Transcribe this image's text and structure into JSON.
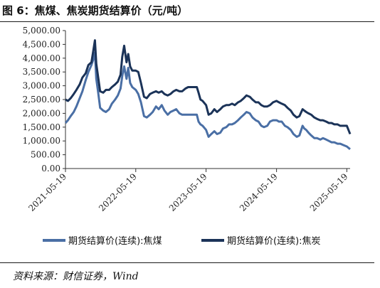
{
  "figure": {
    "title": "图 6：焦煤、焦炭期货结算价（元/吨）",
    "source": "资料来源：财信证券，Wind"
  },
  "chart_data": {
    "type": "line",
    "title": "",
    "xlabel": "",
    "ylabel": "",
    "ylim": [
      0,
      5000
    ],
    "y_ticks": [
      "0.00",
      "500.00",
      "1,000.00",
      "1,500.00",
      "2,000.00",
      "2,500.00",
      "3,000.00",
      "3,500.00",
      "4,000.00",
      "4,500.00",
      "5,000.00"
    ],
    "x_ticks": [
      "2021-05-19",
      "2022-05-19",
      "2023-05-19",
      "2024-05-19",
      "2025-05-19"
    ],
    "x_range": [
      "2021-05-19",
      "2025-06-05"
    ],
    "legend_position": "bottom",
    "grid": false,
    "series": [
      {
        "name": "期货结算价(连续):焦煤",
        "color": "#4a6fa5",
        "points": [
          [
            "2021-05-19",
            1650
          ],
          [
            "2021-06-01",
            1750
          ],
          [
            "2021-06-15",
            1900
          ],
          [
            "2021-07-01",
            2050
          ],
          [
            "2021-07-15",
            2250
          ],
          [
            "2021-08-01",
            2550
          ],
          [
            "2021-08-15",
            2800
          ],
          [
            "2021-09-01",
            3200
          ],
          [
            "2021-09-15",
            3500
          ],
          [
            "2021-10-01",
            3750
          ],
          [
            "2021-10-10",
            3950
          ],
          [
            "2021-10-19",
            4200
          ],
          [
            "2021-10-26",
            3250
          ],
          [
            "2021-11-05",
            2750
          ],
          [
            "2021-11-15",
            2200
          ],
          [
            "2021-12-01",
            2100
          ],
          [
            "2021-12-15",
            2050
          ],
          [
            "2022-01-01",
            2150
          ],
          [
            "2022-01-15",
            2350
          ],
          [
            "2022-02-01",
            2500
          ],
          [
            "2022-02-15",
            2650
          ],
          [
            "2022-03-01",
            2900
          ],
          [
            "2022-03-10",
            3350
          ],
          [
            "2022-03-20",
            3700
          ],
          [
            "2022-04-01",
            3250
          ],
          [
            "2022-04-10",
            3650
          ],
          [
            "2022-04-20",
            3100
          ],
          [
            "2022-05-01",
            2950
          ],
          [
            "2022-05-19",
            2850
          ],
          [
            "2022-06-01",
            2700
          ],
          [
            "2022-06-15",
            2400
          ],
          [
            "2022-07-01",
            1900
          ],
          [
            "2022-07-15",
            1850
          ],
          [
            "2022-08-01",
            1950
          ],
          [
            "2022-08-15",
            2050
          ],
          [
            "2022-09-01",
            2250
          ],
          [
            "2022-09-15",
            2150
          ],
          [
            "2022-10-01",
            2300
          ],
          [
            "2022-10-15",
            2100
          ],
          [
            "2022-11-01",
            1950
          ],
          [
            "2022-11-15",
            2050
          ],
          [
            "2022-12-01",
            2100
          ],
          [
            "2022-12-15",
            2150
          ],
          [
            "2023-01-01",
            2000
          ],
          [
            "2023-01-15",
            1950
          ],
          [
            "2023-02-01",
            1950
          ],
          [
            "2023-02-15",
            1950
          ],
          [
            "2023-03-01",
            1950
          ],
          [
            "2023-03-15",
            1950
          ],
          [
            "2023-04-01",
            1950
          ],
          [
            "2023-04-10",
            1700
          ],
          [
            "2023-04-20",
            1600
          ],
          [
            "2023-05-01",
            1550
          ],
          [
            "2023-05-19",
            1400
          ],
          [
            "2023-06-01",
            1150
          ],
          [
            "2023-06-15",
            1250
          ],
          [
            "2023-07-01",
            1350
          ],
          [
            "2023-07-15",
            1250
          ],
          [
            "2023-08-01",
            1300
          ],
          [
            "2023-08-15",
            1450
          ],
          [
            "2023-09-01",
            1500
          ],
          [
            "2023-09-15",
            1600
          ],
          [
            "2023-10-01",
            1600
          ],
          [
            "2023-10-15",
            1650
          ],
          [
            "2023-11-01",
            1750
          ],
          [
            "2023-11-15",
            1850
          ],
          [
            "2023-12-01",
            1950
          ],
          [
            "2023-12-15",
            2050
          ],
          [
            "2024-01-01",
            2000
          ],
          [
            "2024-01-15",
            1850
          ],
          [
            "2024-02-01",
            1750
          ],
          [
            "2024-02-15",
            1700
          ],
          [
            "2024-03-01",
            1550
          ],
          [
            "2024-03-15",
            1500
          ],
          [
            "2024-04-01",
            1550
          ],
          [
            "2024-04-15",
            1700
          ],
          [
            "2024-05-01",
            1750
          ],
          [
            "2024-05-19",
            1750
          ],
          [
            "2024-06-01",
            1700
          ],
          [
            "2024-06-15",
            1700
          ],
          [
            "2024-07-01",
            1550
          ],
          [
            "2024-07-15",
            1500
          ],
          [
            "2024-08-01",
            1400
          ],
          [
            "2024-08-15",
            1250
          ],
          [
            "2024-09-01",
            1150
          ],
          [
            "2024-09-15",
            1200
          ],
          [
            "2024-10-01",
            1550
          ],
          [
            "2024-10-10",
            1450
          ],
          [
            "2024-10-20",
            1400
          ],
          [
            "2024-11-01",
            1300
          ],
          [
            "2024-11-15",
            1200
          ],
          [
            "2024-12-01",
            1100
          ],
          [
            "2024-12-15",
            1100
          ],
          [
            "2025-01-01",
            1050
          ],
          [
            "2025-01-15",
            1100
          ],
          [
            "2025-02-01",
            1050
          ],
          [
            "2025-02-15",
            1000
          ],
          [
            "2025-03-01",
            950
          ],
          [
            "2025-03-15",
            950
          ],
          [
            "2025-04-01",
            900
          ],
          [
            "2025-04-15",
            900
          ],
          [
            "2025-05-01",
            850
          ],
          [
            "2025-05-19",
            800
          ],
          [
            "2025-06-05",
            700
          ]
        ]
      },
      {
        "name": "期货结算价(连续):焦炭",
        "color": "#1b3358",
        "points": [
          [
            "2021-05-19",
            2500
          ],
          [
            "2021-06-01",
            2450
          ],
          [
            "2021-06-15",
            2550
          ],
          [
            "2021-07-01",
            2700
          ],
          [
            "2021-07-15",
            2850
          ],
          [
            "2021-08-01",
            3050
          ],
          [
            "2021-08-15",
            3300
          ],
          [
            "2021-09-01",
            3450
          ],
          [
            "2021-09-15",
            3750
          ],
          [
            "2021-10-01",
            3850
          ],
          [
            "2021-10-10",
            4250
          ],
          [
            "2021-10-19",
            4650
          ],
          [
            "2021-10-26",
            3800
          ],
          [
            "2021-11-05",
            3300
          ],
          [
            "2021-11-15",
            2800
          ],
          [
            "2021-12-01",
            2750
          ],
          [
            "2021-12-15",
            2850
          ],
          [
            "2022-01-01",
            2850
          ],
          [
            "2022-01-15",
            2950
          ],
          [
            "2022-02-01",
            3050
          ],
          [
            "2022-02-15",
            3150
          ],
          [
            "2022-03-01",
            3400
          ],
          [
            "2022-03-10",
            4050
          ],
          [
            "2022-03-20",
            4450
          ],
          [
            "2022-04-01",
            3850
          ],
          [
            "2022-04-10",
            4150
          ],
          [
            "2022-04-20",
            3700
          ],
          [
            "2022-05-01",
            3550
          ],
          [
            "2022-05-19",
            3550
          ],
          [
            "2022-06-01",
            3500
          ],
          [
            "2022-06-15",
            3100
          ],
          [
            "2022-07-01",
            2600
          ],
          [
            "2022-07-15",
            2550
          ],
          [
            "2022-08-01",
            2700
          ],
          [
            "2022-08-15",
            2750
          ],
          [
            "2022-09-01",
            2800
          ],
          [
            "2022-09-15",
            2750
          ],
          [
            "2022-10-01",
            2800
          ],
          [
            "2022-10-15",
            2700
          ],
          [
            "2022-11-01",
            2650
          ],
          [
            "2022-11-15",
            2700
          ],
          [
            "2022-12-01",
            2800
          ],
          [
            "2022-12-15",
            2850
          ],
          [
            "2023-01-01",
            2800
          ],
          [
            "2023-01-15",
            2800
          ],
          [
            "2023-02-01",
            2900
          ],
          [
            "2023-02-15",
            2950
          ],
          [
            "2023-03-01",
            2950
          ],
          [
            "2023-03-15",
            2950
          ],
          [
            "2023-04-01",
            2950
          ],
          [
            "2023-04-10",
            2750
          ],
          [
            "2023-04-20",
            2500
          ],
          [
            "2023-05-01",
            2450
          ],
          [
            "2023-05-19",
            2300
          ],
          [
            "2023-06-01",
            1950
          ],
          [
            "2023-06-15",
            2000
          ],
          [
            "2023-07-01",
            2150
          ],
          [
            "2023-07-15",
            2050
          ],
          [
            "2023-08-01",
            2150
          ],
          [
            "2023-08-15",
            2250
          ],
          [
            "2023-09-01",
            2300
          ],
          [
            "2023-09-15",
            2300
          ],
          [
            "2023-10-01",
            2350
          ],
          [
            "2023-10-15",
            2300
          ],
          [
            "2023-11-01",
            2400
          ],
          [
            "2023-11-15",
            2450
          ],
          [
            "2023-12-01",
            2550
          ],
          [
            "2023-12-15",
            2650
          ],
          [
            "2024-01-01",
            2600
          ],
          [
            "2024-01-15",
            2500
          ],
          [
            "2024-02-01",
            2400
          ],
          [
            "2024-02-15",
            2400
          ],
          [
            "2024-03-01",
            2300
          ],
          [
            "2024-03-15",
            2250
          ],
          [
            "2024-04-01",
            2250
          ],
          [
            "2024-04-15",
            2300
          ],
          [
            "2024-05-01",
            2400
          ],
          [
            "2024-05-19",
            2450
          ],
          [
            "2024-06-01",
            2400
          ],
          [
            "2024-06-15",
            2350
          ],
          [
            "2024-07-01",
            2300
          ],
          [
            "2024-07-15",
            2200
          ],
          [
            "2024-08-01",
            2100
          ],
          [
            "2024-08-15",
            1950
          ],
          [
            "2024-09-01",
            1850
          ],
          [
            "2024-09-15",
            1900
          ],
          [
            "2024-10-01",
            2150
          ],
          [
            "2024-10-10",
            2100
          ],
          [
            "2024-10-20",
            2050
          ],
          [
            "2024-11-01",
            2000
          ],
          [
            "2024-11-15",
            1950
          ],
          [
            "2024-12-01",
            1850
          ],
          [
            "2024-12-15",
            1800
          ],
          [
            "2025-01-01",
            1750
          ],
          [
            "2025-01-15",
            1750
          ],
          [
            "2025-02-01",
            1700
          ],
          [
            "2025-02-15",
            1650
          ],
          [
            "2025-03-01",
            1650
          ],
          [
            "2025-03-15",
            1600
          ],
          [
            "2025-04-01",
            1600
          ],
          [
            "2025-04-15",
            1550
          ],
          [
            "2025-05-01",
            1550
          ],
          [
            "2025-05-19",
            1550
          ],
          [
            "2025-06-05",
            1250
          ]
        ]
      }
    ]
  }
}
